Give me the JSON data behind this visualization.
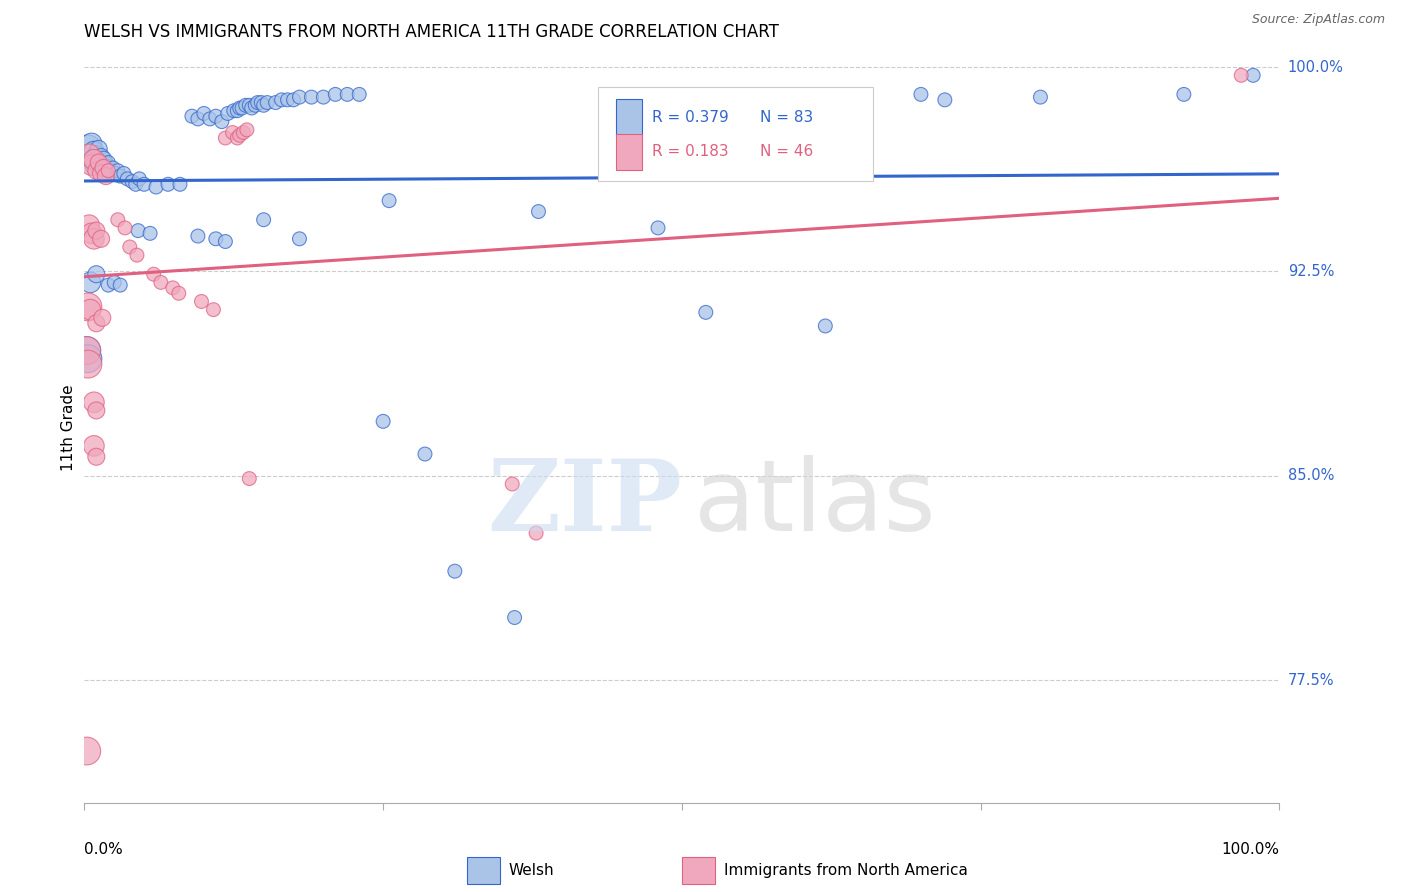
{
  "title": "WELSH VS IMMIGRANTS FROM NORTH AMERICA 11TH GRADE CORRELATION CHART",
  "source": "Source: ZipAtlas.com",
  "ylabel": "11th Grade",
  "legend_blue_r": "0.379",
  "legend_blue_n": "83",
  "legend_pink_r": "0.183",
  "legend_pink_n": "46",
  "blue_color": "#aac4e8",
  "pink_color": "#f0a8be",
  "line_blue": "#3366cc",
  "line_pink": "#e06080",
  "xlim": [
    0.0,
    1.0
  ],
  "ylim": [
    0.73,
    1.005
  ],
  "ytick_positions": [
    0.775,
    0.85,
    0.925,
    1.0
  ],
  "ytick_labels": [
    "77.5%",
    "85.0%",
    "92.5%",
    "100.0%"
  ],
  "right_label_color": "#3366cc",
  "blue_points": [
    [
      0.003,
      0.97
    ],
    [
      0.005,
      0.968
    ],
    [
      0.006,
      0.972
    ],
    [
      0.007,
      0.966
    ],
    [
      0.008,
      0.969
    ],
    [
      0.009,
      0.964
    ],
    [
      0.01,
      0.968
    ],
    [
      0.011,
      0.966
    ],
    [
      0.012,
      0.97
    ],
    [
      0.013,
      0.965
    ],
    [
      0.014,
      0.967
    ],
    [
      0.015,
      0.963
    ],
    [
      0.016,
      0.966
    ],
    [
      0.017,
      0.961
    ],
    [
      0.018,
      0.964
    ],
    [
      0.019,
      0.963
    ],
    [
      0.02,
      0.965
    ],
    [
      0.022,
      0.962
    ],
    [
      0.024,
      0.963
    ],
    [
      0.026,
      0.961
    ],
    [
      0.028,
      0.962
    ],
    [
      0.03,
      0.96
    ],
    [
      0.033,
      0.961
    ],
    [
      0.036,
      0.959
    ],
    [
      0.04,
      0.958
    ],
    [
      0.043,
      0.957
    ],
    [
      0.046,
      0.959
    ],
    [
      0.05,
      0.957
    ],
    [
      0.06,
      0.956
    ],
    [
      0.07,
      0.957
    ],
    [
      0.08,
      0.957
    ],
    [
      0.09,
      0.982
    ],
    [
      0.095,
      0.981
    ],
    [
      0.1,
      0.983
    ],
    [
      0.105,
      0.981
    ],
    [
      0.11,
      0.982
    ],
    [
      0.115,
      0.98
    ],
    [
      0.12,
      0.983
    ],
    [
      0.125,
      0.984
    ],
    [
      0.128,
      0.984
    ],
    [
      0.13,
      0.985
    ],
    [
      0.132,
      0.985
    ],
    [
      0.135,
      0.986
    ],
    [
      0.138,
      0.986
    ],
    [
      0.14,
      0.985
    ],
    [
      0.143,
      0.986
    ],
    [
      0.145,
      0.987
    ],
    [
      0.148,
      0.987
    ],
    [
      0.15,
      0.986
    ],
    [
      0.153,
      0.987
    ],
    [
      0.16,
      0.987
    ],
    [
      0.165,
      0.988
    ],
    [
      0.17,
      0.988
    ],
    [
      0.175,
      0.988
    ],
    [
      0.18,
      0.989
    ],
    [
      0.19,
      0.989
    ],
    [
      0.2,
      0.989
    ],
    [
      0.21,
      0.99
    ],
    [
      0.22,
      0.99
    ],
    [
      0.23,
      0.99
    ],
    [
      0.045,
      0.94
    ],
    [
      0.055,
      0.939
    ],
    [
      0.095,
      0.938
    ],
    [
      0.11,
      0.937
    ],
    [
      0.118,
      0.936
    ],
    [
      0.005,
      0.921
    ],
    [
      0.01,
      0.924
    ],
    [
      0.02,
      0.92
    ],
    [
      0.025,
      0.921
    ],
    [
      0.03,
      0.92
    ],
    [
      0.002,
      0.896
    ],
    [
      0.003,
      0.893
    ],
    [
      0.15,
      0.944
    ],
    [
      0.18,
      0.937
    ],
    [
      0.255,
      0.951
    ],
    [
      0.38,
      0.947
    ],
    [
      0.48,
      0.941
    ],
    [
      0.52,
      0.91
    ],
    [
      0.62,
      0.905
    ],
    [
      0.7,
      0.99
    ],
    [
      0.72,
      0.988
    ],
    [
      0.8,
      0.989
    ],
    [
      0.92,
      0.99
    ],
    [
      0.978,
      0.997
    ],
    [
      0.25,
      0.87
    ],
    [
      0.285,
      0.858
    ],
    [
      0.31,
      0.815
    ],
    [
      0.36,
      0.798
    ]
  ],
  "pink_points": [
    [
      0.004,
      0.968
    ],
    [
      0.006,
      0.964
    ],
    [
      0.008,
      0.966
    ],
    [
      0.01,
      0.962
    ],
    [
      0.012,
      0.965
    ],
    [
      0.014,
      0.961
    ],
    [
      0.016,
      0.963
    ],
    [
      0.018,
      0.96
    ],
    [
      0.02,
      0.962
    ],
    [
      0.004,
      0.942
    ],
    [
      0.006,
      0.939
    ],
    [
      0.008,
      0.937
    ],
    [
      0.01,
      0.94
    ],
    [
      0.014,
      0.937
    ],
    [
      0.028,
      0.944
    ],
    [
      0.034,
      0.941
    ],
    [
      0.003,
      0.912
    ],
    [
      0.005,
      0.911
    ],
    [
      0.01,
      0.906
    ],
    [
      0.015,
      0.908
    ],
    [
      0.038,
      0.934
    ],
    [
      0.044,
      0.931
    ],
    [
      0.002,
      0.896
    ],
    [
      0.003,
      0.891
    ],
    [
      0.058,
      0.924
    ],
    [
      0.064,
      0.921
    ],
    [
      0.008,
      0.877
    ],
    [
      0.01,
      0.874
    ],
    [
      0.074,
      0.919
    ],
    [
      0.079,
      0.917
    ],
    [
      0.008,
      0.861
    ],
    [
      0.01,
      0.857
    ],
    [
      0.098,
      0.914
    ],
    [
      0.108,
      0.911
    ],
    [
      0.118,
      0.974
    ],
    [
      0.124,
      0.976
    ],
    [
      0.128,
      0.974
    ],
    [
      0.13,
      0.975
    ],
    [
      0.133,
      0.976
    ],
    [
      0.136,
      0.977
    ],
    [
      0.002,
      0.749
    ],
    [
      0.138,
      0.849
    ],
    [
      0.358,
      0.847
    ],
    [
      0.378,
      0.829
    ],
    [
      0.968,
      0.997
    ]
  ]
}
